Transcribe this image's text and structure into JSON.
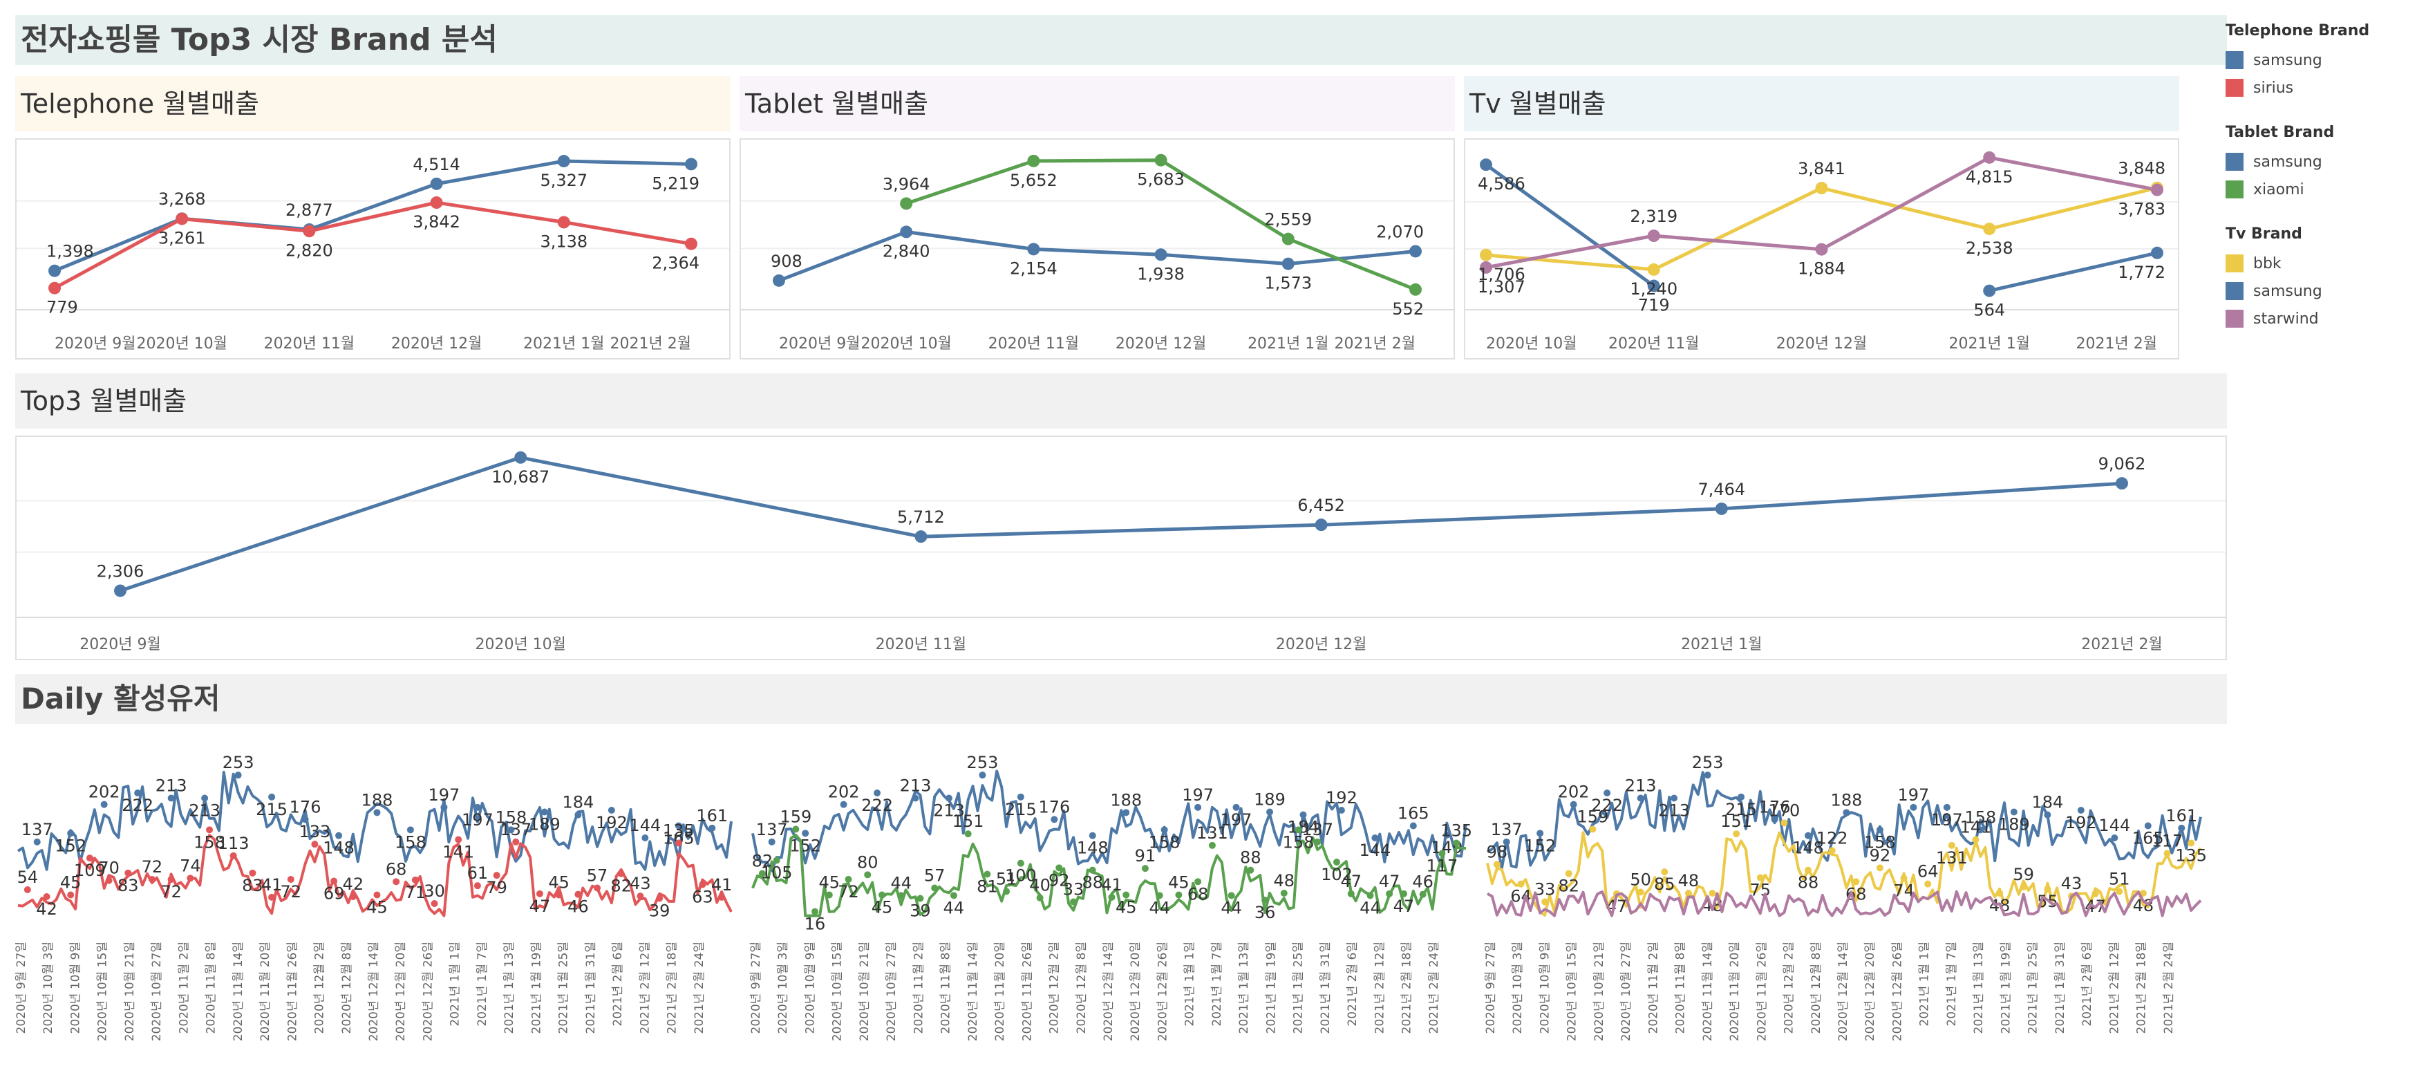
{
  "title": "전자쇼핑몰 Top3 시장 Brand 분석",
  "panels": {
    "telephone": "Telephone 월별매출",
    "tablet": "Tablet 월별매출",
    "tv": "Tv 월별매출",
    "top3": "Top3 월별매출",
    "daily": "Daily 활성유저"
  },
  "colors": {
    "blue": "#4e79a7",
    "red": "#e15759",
    "green": "#59a14f",
    "yellow": "#edc948",
    "purple": "#b07aa1"
  },
  "legend": [
    {
      "title": "Telephone Brand",
      "items": [
        {
          "label": "samsung",
          "color": "#4e79a7"
        },
        {
          "label": "sirius",
          "color": "#e15759"
        }
      ]
    },
    {
      "title": "Tablet Brand",
      "items": [
        {
          "label": "samsung",
          "color": "#4e79a7"
        },
        {
          "label": "xiaomi",
          "color": "#59a14f"
        }
      ]
    },
    {
      "title": "Tv Brand",
      "items": [
        {
          "label": "bbk",
          "color": "#edc948"
        },
        {
          "label": "samsung",
          "color": "#4e79a7"
        },
        {
          "label": "starwind",
          "color": "#b07aa1"
        }
      ]
    }
  ],
  "chart_data": [
    {
      "id": "telephone",
      "type": "line",
      "title": "Telephone 월별매출",
      "categories": [
        "2020년 9월",
        "2020년 10월",
        "2020년 11월",
        "2020년 12월",
        "2021년 1월",
        "2021년 2월"
      ],
      "ylim": [
        500,
        5600
      ],
      "series": [
        {
          "name": "samsung",
          "color": "#4e79a7",
          "values": [
            1398,
            3268,
            2877,
            4514,
            5327,
            5219
          ]
        },
        {
          "name": "sirius",
          "color": "#e15759",
          "values": [
            779,
            3261,
            2820,
            3842,
            3138,
            2364
          ]
        }
      ]
    },
    {
      "id": "tablet",
      "type": "line",
      "title": "Tablet 월별매출",
      "categories": [
        "2020년 9월",
        "2020년 10월",
        "2020년 11월",
        "2020년 12월",
        "2021년 1월",
        "2021년 2월"
      ],
      "ylim": [
        300,
        5950
      ],
      "series": [
        {
          "name": "samsung",
          "color": "#4e79a7",
          "values": [
            908,
            2840,
            2154,
            1938,
            1573,
            2070
          ]
        },
        {
          "name": "xiaomi",
          "color": "#59a14f",
          "values": [
            null,
            3964,
            5652,
            5683,
            2559,
            552
          ]
        }
      ]
    },
    {
      "id": "tv",
      "type": "line",
      "title": "Tv 월별매출",
      "categories": [
        "2020년 10월",
        "2020년 11월",
        "2020년 12월",
        "2021년 1월",
        "2021년 2월"
      ],
      "ylim": [
        400,
        4900
      ],
      "series": [
        {
          "name": "bbk",
          "color": "#edc948",
          "values": [
            1706,
            1240,
            3841,
            2538,
            3848
          ]
        },
        {
          "name": "samsung",
          "color": "#4e79a7",
          "values": [
            4586,
            719,
            null,
            564,
            1772
          ]
        },
        {
          "name": "starwind",
          "color": "#b07aa1",
          "values": [
            1307,
            2319,
            1884,
            4815,
            3783
          ]
        }
      ]
    },
    {
      "id": "top3",
      "type": "line",
      "title": "Top3 월별매출",
      "categories": [
        "2020년 9월",
        "2020년 10월",
        "2020년 11월",
        "2020년 12월",
        "2021년 1월",
        "2021년 2월"
      ],
      "ylim": [
        1500,
        11200
      ],
      "series": [
        {
          "color": "#4e79a7",
          "values": [
            2306,
            10687,
            5712,
            6452,
            7464,
            9062
          ]
        }
      ]
    },
    {
      "id": "daily",
      "type": "line",
      "title": "Daily 활성유저",
      "x": [
        "2020년 9월 27일",
        "2020년 10월 3일",
        "2020년 10월 9일",
        "2020년 10월 15일",
        "2020년 10월 21일",
        "2020년 10월 27일",
        "2020년 11월 2일",
        "2020년 11월 8일",
        "2020년 11월 14일",
        "2020년 11월 20일",
        "2020년 11월 26일",
        "2020년 12월 2일",
        "2020년 12월 8일",
        "2020년 12월 14일",
        "2020년 12월 20일",
        "2020년 12월 26일",
        "2021년 1월 1일",
        "2021년 1월 7일",
        "2021년 1월 13일",
        "2021년 1월 19일",
        "2021년 1월 25일",
        "2021년 1월 31일",
        "2021년 2월 6일",
        "2021년 2월 12일",
        "2021년 2월 18일",
        "2021년 2월 24일"
      ],
      "panels": [
        {
          "series": [
            {
              "name": "samsung",
              "color": "#4e79a7",
              "labels": [
                137,
                152,
                202,
                222,
                213,
                213,
                253,
                215,
                176,
                148,
                188,
                158,
                197,
                197,
                158,
                189,
                184,
                192,
                144,
                165,
                161
              ]
            },
            {
              "name": "sirius",
              "color": "#e15759",
              "labels": [
                54,
                42,
                45,
                109,
                70,
                83,
                72,
                72,
                74,
                158,
                113,
                83,
                41,
                72,
                133,
                69,
                42,
                45,
                68,
                71,
                30,
                141,
                61,
                79,
                137,
                47,
                45,
                46,
                57,
                82,
                43,
                39,
                135,
                63,
                41
              ]
            }
          ]
        },
        {
          "series": [
            {
              "name": "samsung",
              "color": "#4e79a7",
              "labels": [
                137,
                152,
                202,
                222,
                213,
                213,
                253,
                215,
                176,
                148,
                188,
                158,
                197,
                197,
                189,
                184,
                192,
                144,
                165,
                149
              ]
            },
            {
              "name": "xiaomi",
              "color": "#59a14f",
              "labels": [
                82,
                105,
                159,
                16,
                45,
                72,
                80,
                45,
                44,
                39,
                57,
                44,
                151,
                81,
                51,
                100,
                40,
                92,
                33,
                88,
                41,
                45,
                91,
                44,
                45,
                68,
                131,
                44,
                88,
                36,
                48,
                158,
                137,
                102,
                47,
                44,
                47,
                47,
                46,
                117,
                135
              ]
            }
          ]
        },
        {
          "series": [
            {
              "name": "samsung",
              "color": "#4e79a7",
              "labels": [
                137,
                152,
                202,
                222,
                213,
                213,
                253,
                215,
                176,
                148,
                188,
                158,
                197,
                197,
                158,
                189,
                184,
                192,
                144,
                165,
                161
              ]
            },
            {
              "name": "bbk",
              "color": "#edc948",
              "labels": [
                98,
                64,
                33,
                82,
                159,
                47,
                50,
                85,
                48,
                48,
                151,
                75,
                170,
                88,
                122,
                68,
                92,
                74,
                64,
                131,
                141,
                48,
                59,
                55,
                43,
                47,
                51,
                48,
                117,
                135
              ]
            },
            {
              "name": "starwind",
              "color": "#b07aa1",
              "labels": []
            }
          ]
        }
      ]
    }
  ]
}
